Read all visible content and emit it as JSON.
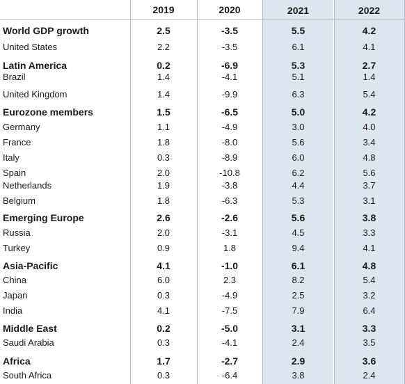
{
  "table": {
    "columns": [
      "",
      "2019",
      "2020",
      "2021",
      "2022"
    ],
    "rows": [
      {
        "label": "World GDP growth",
        "bold": true,
        "values": [
          "2.5",
          "-3.5",
          "5.5",
          "4.2"
        ]
      },
      {
        "label": "United States",
        "bold": false,
        "values": [
          "2.2",
          "-3.5",
          "6.1",
          "4.1"
        ]
      },
      {
        "label": "Latin America",
        "bold": true,
        "values": [
          "0.2",
          "-6.9",
          "5.3",
          "2.7"
        ]
      },
      {
        "label": "Brazil",
        "bold": false,
        "values": [
          "1.4",
          "-4.1",
          "5.1",
          "1.4"
        ]
      },
      {
        "label": "United Kingdom",
        "bold": false,
        "values": [
          "1.4",
          "-9.9",
          "6.3",
          "5.4"
        ]
      },
      {
        "label": "Eurozone members",
        "bold": true,
        "values": [
          "1.5",
          "-6.5",
          "5.0",
          "4.2"
        ]
      },
      {
        "label": "Germany",
        "bold": false,
        "values": [
          "1.1",
          "-4.9",
          "3.0",
          "4.0"
        ]
      },
      {
        "label": "France",
        "bold": false,
        "values": [
          "1.8",
          "-8.0",
          "5.6",
          "3.4"
        ]
      },
      {
        "label": "Italy",
        "bold": false,
        "values": [
          "0.3",
          "-8.9",
          "6.0",
          "4.8"
        ]
      },
      {
        "label": "Spain",
        "bold": false,
        "values": [
          "2.0",
          "-10.8",
          "6.2",
          "5.6"
        ]
      },
      {
        "label": "Netherlands",
        "bold": false,
        "values": [
          "1.9",
          "-3.8",
          "4.4",
          "3.7"
        ]
      },
      {
        "label": "Belgium",
        "bold": false,
        "values": [
          "1.8",
          "-6.3",
          "5.3",
          "3.1"
        ]
      },
      {
        "label": "Emerging Europe",
        "bold": true,
        "values": [
          "2.6",
          "-2.6",
          "5.6",
          "3.8"
        ]
      },
      {
        "label": "Russia",
        "bold": false,
        "values": [
          "2.0",
          "-3.1",
          "4.5",
          "3.3"
        ]
      },
      {
        "label": "Turkey",
        "bold": false,
        "values": [
          "0.9",
          "1.8",
          "9.4",
          "4.1"
        ]
      },
      {
        "label": "Asia-Pacific",
        "bold": true,
        "values": [
          "4.1",
          "-1.0",
          "6.1",
          "4.8"
        ]
      },
      {
        "label": "China",
        "bold": false,
        "values": [
          "6.0",
          "2.3",
          "8.2",
          "5.4"
        ]
      },
      {
        "label": "Japan",
        "bold": false,
        "values": [
          "0.3",
          "-4.9",
          "2.5",
          "3.2"
        ]
      },
      {
        "label": "India",
        "bold": false,
        "values": [
          "4.1",
          "-7.5",
          "7.9",
          "6.4"
        ]
      },
      {
        "label": "Middle East",
        "bold": true,
        "values": [
          "0.2",
          "-5.0",
          "3.1",
          "3.3"
        ]
      },
      {
        "label": "Saudi Arabia",
        "bold": false,
        "values": [
          "0.3",
          "-4.1",
          "2.4",
          "3.5"
        ]
      },
      {
        "label": "Africa",
        "bold": true,
        "values": [
          "1.7",
          "-2.7",
          "2.9",
          "3.6"
        ]
      },
      {
        "label": "South Africa",
        "bold": false,
        "values": [
          "0.3",
          "-6.4",
          "3.8",
          "2.4"
        ]
      }
    ]
  },
  "colors": {
    "forecast_shade": "#dce6f1",
    "grid": "#b9b9b9",
    "text": "#1a1a1a"
  }
}
